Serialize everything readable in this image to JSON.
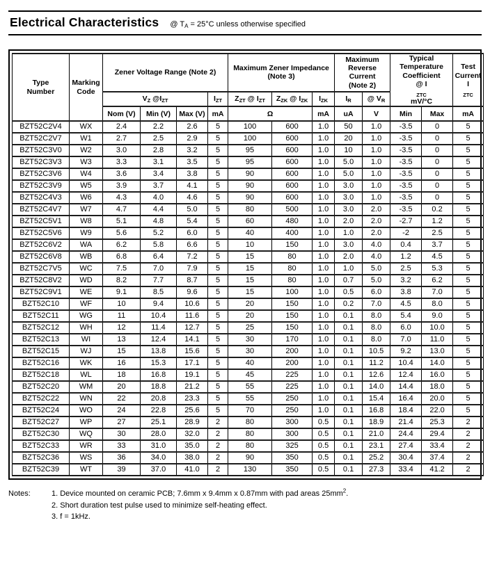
{
  "title": {
    "heading": "Electrical Characteristics",
    "cond_prefix": "@ T",
    "cond_sub": "A",
    "cond_rest": " = 25°C unless otherwise specified"
  },
  "header": {
    "type_number": "Type Number",
    "marking_code": "Marking Code",
    "zener_voltage_range": "Zener Voltage Range (Note 2)",
    "max_zener_impedance": "Maximum Zener Impedance (Note 3)",
    "max_reverse_current": "Maximum Reverse Current (Note 2)",
    "temp_coeff": {
      "title": "Typical Temperature Coefficient",
      "at": "@ I",
      "at_sub": "ZTC",
      "unit": "mV/°C"
    },
    "test_current": {
      "label": "Test Current",
      "symbol": "I",
      "symbol_sub": "ZTC"
    },
    "vz": {
      "v": "V",
      "v_sub": "Z",
      "at": " @I",
      "at_sub": "ZT"
    },
    "izt": {
      "i": "I",
      "sub": "ZT"
    },
    "zzt": {
      "z": "Z",
      "z_sub": "ZT",
      "at": " @ I",
      "at_sub": "ZT"
    },
    "zzk": {
      "z": "Z",
      "z_sub": "ZK",
      "at": " @ I",
      "at_sub": "ZK"
    },
    "izk": {
      "i": "I",
      "sub": "ZK"
    },
    "ir": {
      "i": "I",
      "sub": "R"
    },
    "vr": {
      "at": "@ V",
      "sub": "R"
    },
    "nom_v": "Nom (V)",
    "min_v": "Min (V)",
    "max_v": "Max (V)",
    "units": {
      "izt_ma": "mA",
      "ohm": "Ω",
      "izk_ma": "mA",
      "ua": "uA",
      "v": "V",
      "tc_min": "Min",
      "tc_max": "Max",
      "test_ma": "mA"
    }
  },
  "table": {
    "rows": [
      [
        "BZT52C2V4",
        "WX",
        "2.4",
        "2.2",
        "2.6",
        "5",
        "100",
        "600",
        "1.0",
        "50",
        "1.0",
        "-3.5",
        "0",
        "5"
      ],
      [
        "BZT52C2V7",
        "W1",
        "2.7",
        "2.5",
        "2.9",
        "5",
        "100",
        "600",
        "1.0",
        "20",
        "1.0",
        "-3.5",
        "0",
        "5"
      ],
      [
        "BZT52C3V0",
        "W2",
        "3.0",
        "2.8",
        "3.2",
        "5",
        "95",
        "600",
        "1.0",
        "10",
        "1.0",
        "-3.5",
        "0",
        "5"
      ],
      [
        "BZT52C3V3",
        "W3",
        "3.3",
        "3.1",
        "3.5",
        "5",
        "95",
        "600",
        "1.0",
        "5.0",
        "1.0",
        "-3.5",
        "0",
        "5"
      ],
      [
        "BZT52C3V6",
        "W4",
        "3.6",
        "3.4",
        "3.8",
        "5",
        "90",
        "600",
        "1.0",
        "5.0",
        "1.0",
        "-3.5",
        "0",
        "5"
      ],
      [
        "BZT52C3V9",
        "W5",
        "3.9",
        "3.7",
        "4.1",
        "5",
        "90",
        "600",
        "1.0",
        "3.0",
        "1.0",
        "-3.5",
        "0",
        "5"
      ],
      [
        "BZT52C4V3",
        "W6",
        "4.3",
        "4.0",
        "4.6",
        "5",
        "90",
        "600",
        "1.0",
        "3.0",
        "1.0",
        "-3.5",
        "0",
        "5"
      ],
      [
        "BZT52C4V7",
        "W7",
        "4.7",
        "4.4",
        "5.0",
        "5",
        "80",
        "500",
        "1.0",
        "3.0",
        "2.0",
        "-3.5",
        "0.2",
        "5"
      ],
      [
        "BZT52C5V1",
        "W8",
        "5.1",
        "4.8",
        "5.4",
        "5",
        "60",
        "480",
        "1.0",
        "2.0",
        "2.0",
        "-2.7",
        "1.2",
        "5"
      ],
      [
        "BZT52C5V6",
        "W9",
        "5.6",
        "5.2",
        "6.0",
        "5",
        "40",
        "400",
        "1.0",
        "1.0",
        "2.0",
        "-2",
        "2.5",
        "5"
      ],
      [
        "BZT52C6V2",
        "WA",
        "6.2",
        "5.8",
        "6.6",
        "5",
        "10",
        "150",
        "1.0",
        "3.0",
        "4.0",
        "0.4",
        "3.7",
        "5"
      ],
      [
        "BZT52C6V8",
        "WB",
        "6.8",
        "6.4",
        "7.2",
        "5",
        "15",
        "80",
        "1.0",
        "2.0",
        "4.0",
        "1.2",
        "4.5",
        "5"
      ],
      [
        "BZT52C7V5",
        "WC",
        "7.5",
        "7.0",
        "7.9",
        "5",
        "15",
        "80",
        "1.0",
        "1.0",
        "5.0",
        "2.5",
        "5.3",
        "5"
      ],
      [
        "BZT52C8V2",
        "WD",
        "8.2",
        "7.7",
        "8.7",
        "5",
        "15",
        "80",
        "1.0",
        "0.7",
        "5.0",
        "3.2",
        "6.2",
        "5"
      ],
      [
        "BZT52C9V1",
        "WE",
        "9.1",
        "8.5",
        "9.6",
        "5",
        "15",
        "100",
        "1.0",
        "0.5",
        "6.0",
        "3.8",
        "7.0",
        "5"
      ],
      [
        "BZT52C10",
        "WF",
        "10",
        "9.4",
        "10.6",
        "5",
        "20",
        "150",
        "1.0",
        "0.2",
        "7.0",
        "4.5",
        "8.0",
        "5"
      ],
      [
        "BZT52C11",
        "WG",
        "11",
        "10.4",
        "11.6",
        "5",
        "20",
        "150",
        "1.0",
        "0.1",
        "8.0",
        "5.4",
        "9.0",
        "5"
      ],
      [
        "BZT52C12",
        "WH",
        "12",
        "11.4",
        "12.7",
        "5",
        "25",
        "150",
        "1.0",
        "0.1",
        "8.0",
        "6.0",
        "10.0",
        "5"
      ],
      [
        "BZT52C13",
        "WI",
        "13",
        "12.4",
        "14.1",
        "5",
        "30",
        "170",
        "1.0",
        "0.1",
        "8.0",
        "7.0",
        "11.0",
        "5"
      ],
      [
        "BZT52C15",
        "WJ",
        "15",
        "13.8",
        "15.6",
        "5",
        "30",
        "200",
        "1.0",
        "0.1",
        "10.5",
        "9.2",
        "13.0",
        "5"
      ],
      [
        "BZT52C16",
        "WK",
        "16",
        "15.3",
        "17.1",
        "5",
        "40",
        "200",
        "1.0",
        "0.1",
        "11.2",
        "10.4",
        "14.0",
        "5"
      ],
      [
        "BZT52C18",
        "WL",
        "18",
        "16.8",
        "19.1",
        "5",
        "45",
        "225",
        "1.0",
        "0.1",
        "12.6",
        "12.4",
        "16.0",
        "5"
      ],
      [
        "BZT52C20",
        "WM",
        "20",
        "18.8",
        "21.2",
        "5",
        "55",
        "225",
        "1.0",
        "0.1",
        "14.0",
        "14.4",
        "18.0",
        "5"
      ],
      [
        "BZT52C22",
        "WN",
        "22",
        "20.8",
        "23.3",
        "5",
        "55",
        "250",
        "1.0",
        "0.1",
        "15.4",
        "16.4",
        "20.0",
        "5"
      ],
      [
        "BZT52C24",
        "WO",
        "24",
        "22.8",
        "25.6",
        "5",
        "70",
        "250",
        "1.0",
        "0.1",
        "16.8",
        "18.4",
        "22.0",
        "5"
      ],
      [
        "BZT52C27",
        "WP",
        "27",
        "25.1",
        "28.9",
        "2",
        "80",
        "300",
        "0.5",
        "0.1",
        "18.9",
        "21.4",
        "25.3",
        "2"
      ],
      [
        "BZT52C30",
        "WQ",
        "30",
        "28.0",
        "32.0",
        "2",
        "80",
        "300",
        "0.5",
        "0.1",
        "21.0",
        "24.4",
        "29.4",
        "2"
      ],
      [
        "BZT52C33",
        "WR",
        "33",
        "31.0",
        "35.0",
        "2",
        "80",
        "325",
        "0.5",
        "0.1",
        "23.1",
        "27.4",
        "33.4",
        "2"
      ],
      [
        "BZT52C36",
        "WS",
        "36",
        "34.0",
        "38.0",
        "2",
        "90",
        "350",
        "0.5",
        "0.1",
        "25.2",
        "30.4",
        "37.4",
        "2"
      ],
      [
        "BZT52C39",
        "WT",
        "39",
        "37.0",
        "41.0",
        "2",
        "130",
        "350",
        "0.5",
        "0.1",
        "27.3",
        "33.4",
        "41.2",
        "2"
      ]
    ]
  },
  "notes": {
    "label": "Notes:",
    "note1_text": "1. Device mounted on ceramic PCB; 7.6mm x 9.4mm x 0.87mm with pad areas 25mm",
    "note1_sup": "2",
    "note1_tail": ".",
    "note2": "2. Short duration test pulse used to minimize self-heating effect.",
    "note3": "3. f = 1kHz."
  }
}
